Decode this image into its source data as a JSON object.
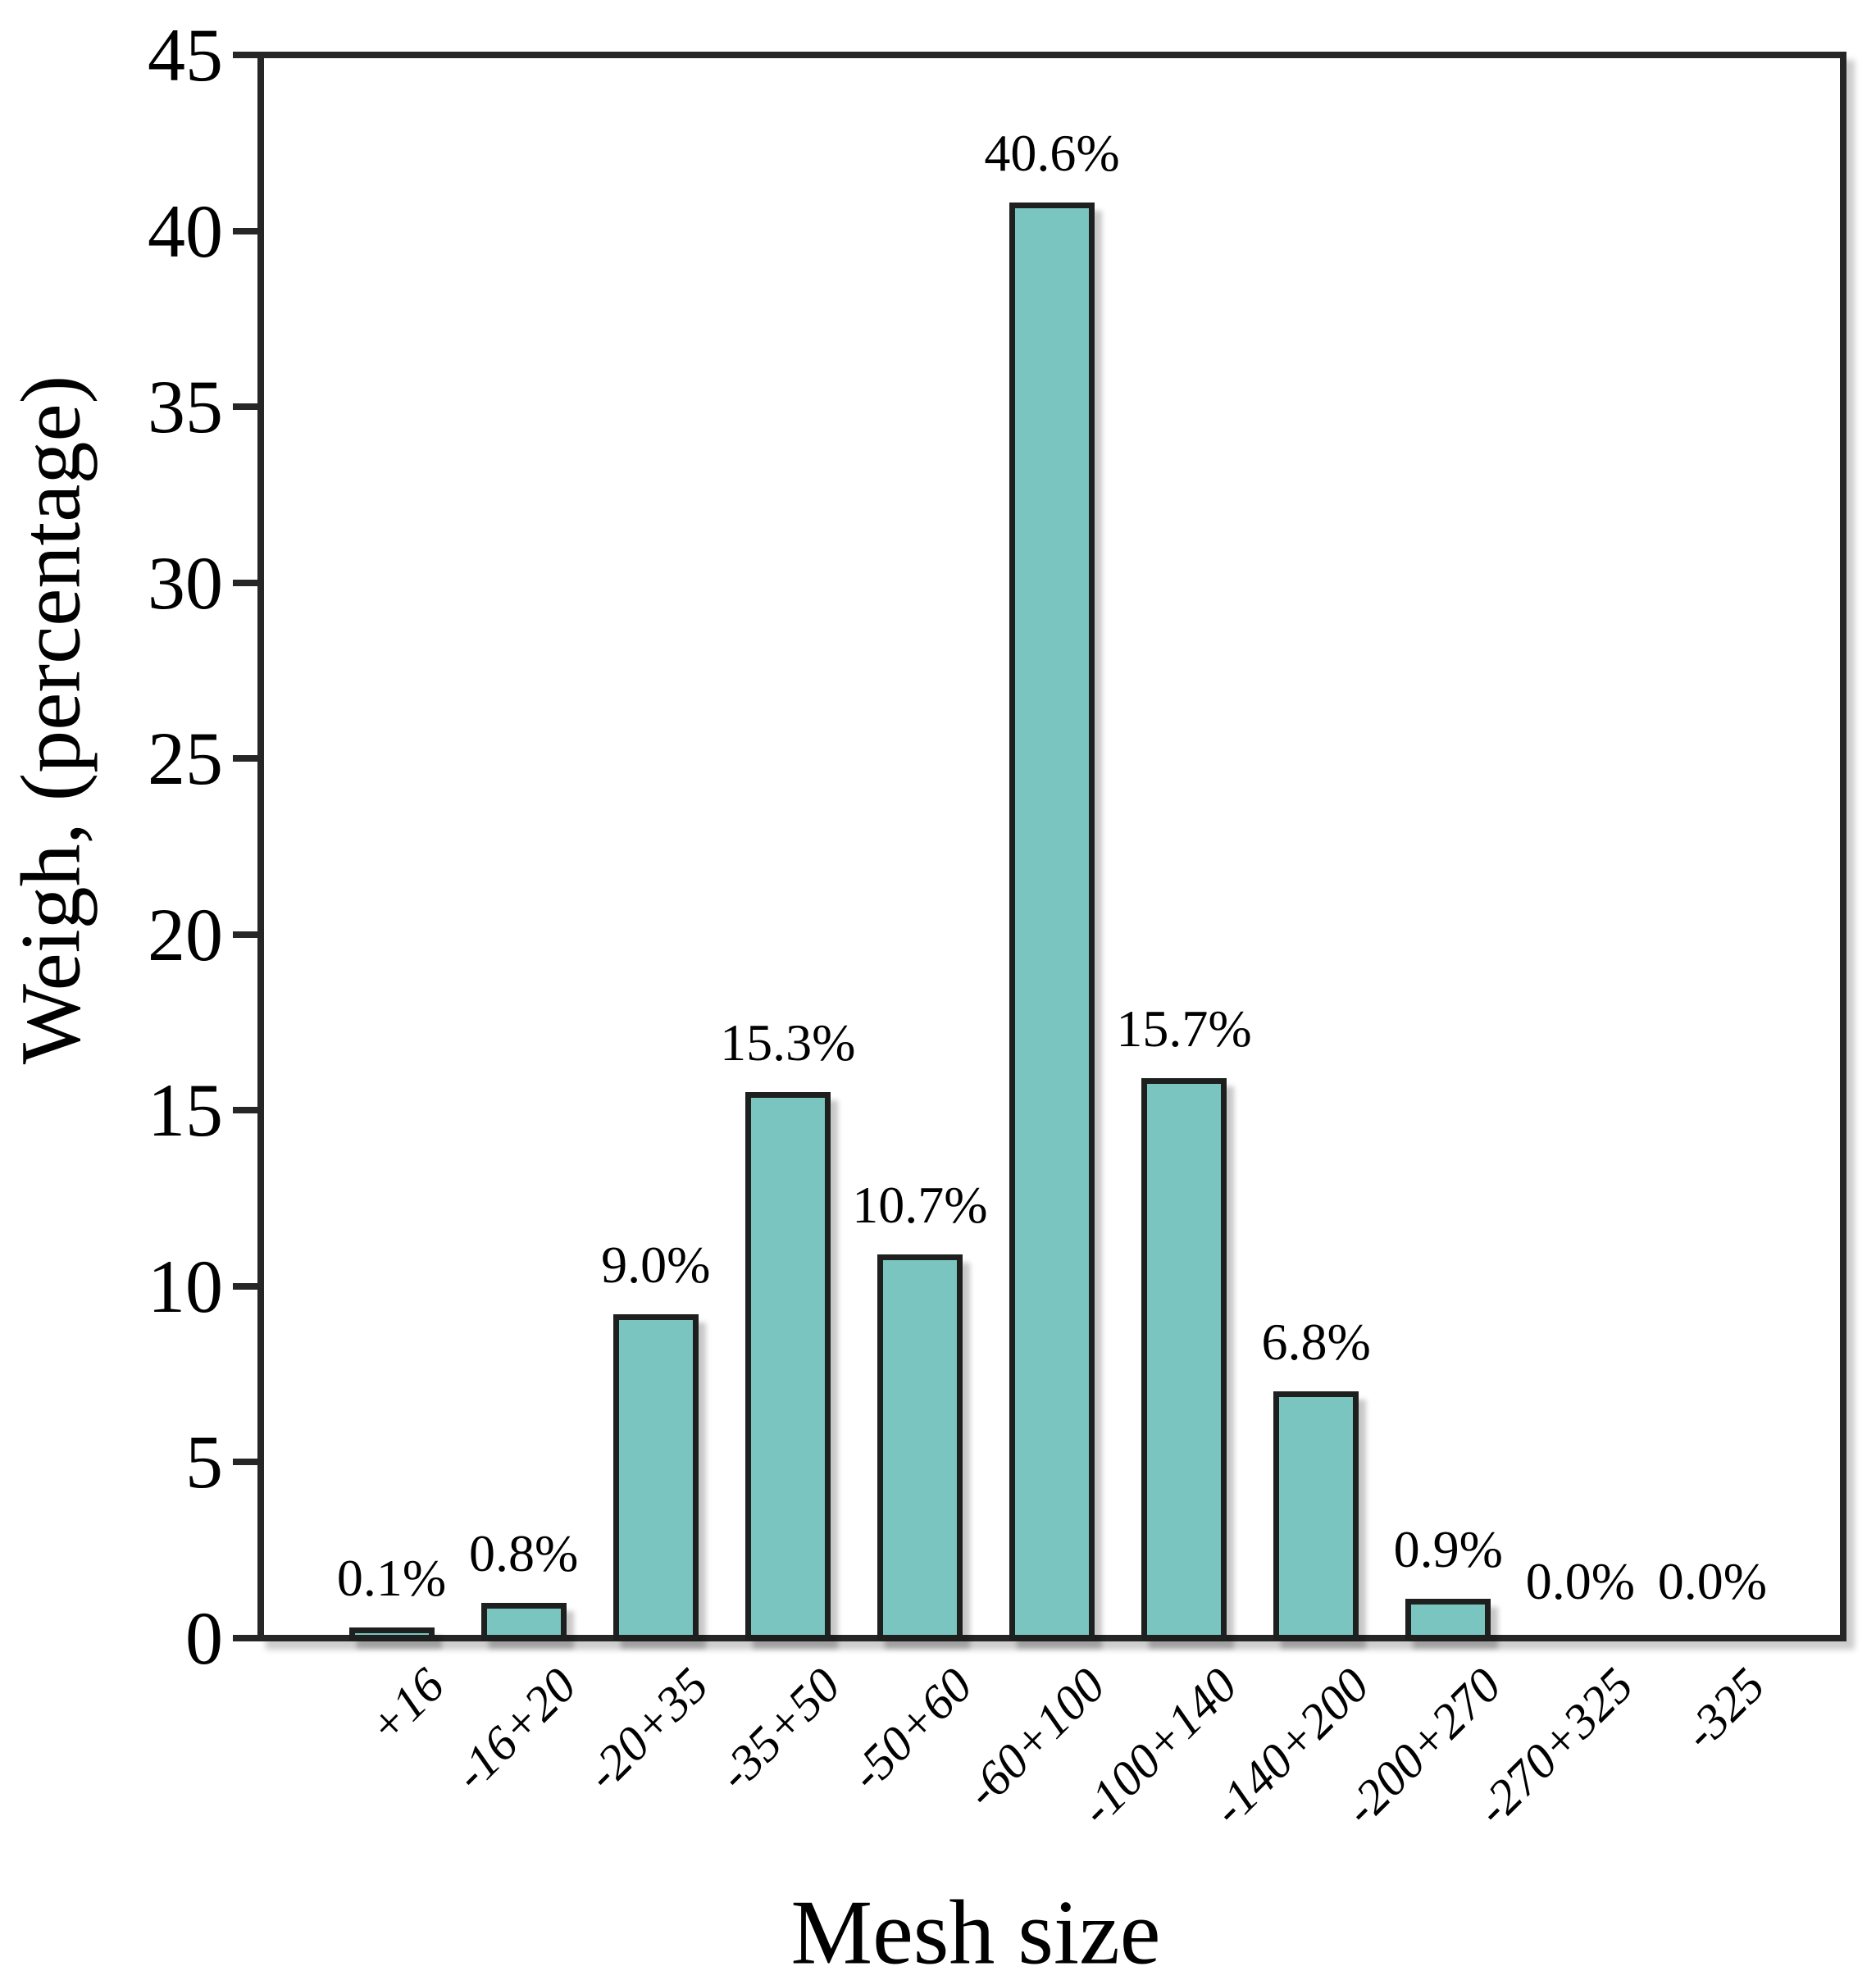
{
  "figure": {
    "background": "#ffffff"
  },
  "chart_data": {
    "type": "bar",
    "title": "",
    "xlabel": "Mesh size",
    "ylabel": "Weigh, (percentage)",
    "categories": [
      "+16",
      "-16+20",
      "-20+35",
      "-35+50",
      "-50+60",
      "-60+100",
      "-100+140",
      "-140+200",
      "-200+270",
      "-270+325",
      "-325"
    ],
    "values": [
      0.1,
      0.8,
      9.0,
      15.3,
      10.7,
      40.6,
      15.7,
      6.8,
      0.9,
      0.0,
      0.0
    ],
    "bar_labels": [
      "0.1%",
      "0.8%",
      "9.0%",
      "15.3%",
      "10.7%",
      "40.6%",
      "15.7%",
      "6.8%",
      "0.9%",
      "0.0%",
      "0.0%"
    ],
    "ylim": [
      0,
      45
    ],
    "ytick_values": [
      0,
      5,
      10,
      15,
      20,
      25,
      30,
      35,
      40,
      45
    ],
    "ytick_labels": [
      "0",
      "5",
      "10",
      "15",
      "20",
      "25",
      "30",
      "35",
      "40",
      "45"
    ],
    "grid": false,
    "legend": null,
    "bar_color": "#7ac5bf",
    "bar_edge_color": "#1e1f1f",
    "axis_color": "#262626",
    "text_color": "#000000"
  }
}
